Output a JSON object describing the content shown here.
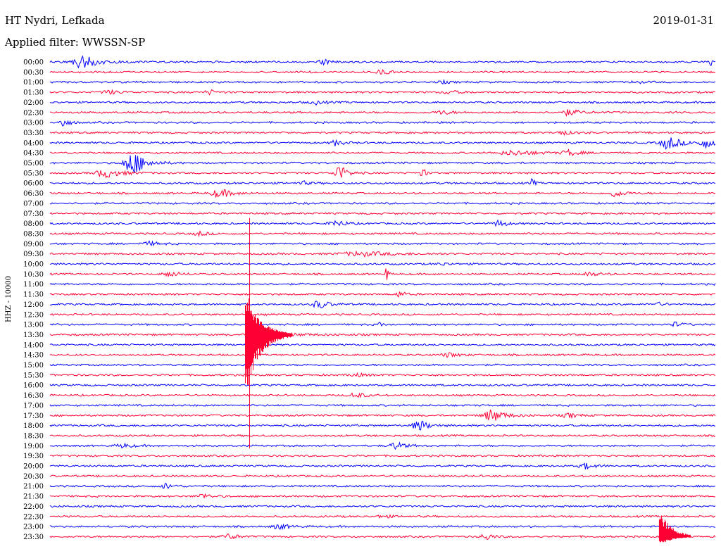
{
  "header": {
    "station": "HT Nydri, Lefkada",
    "date": "2019-01-31",
    "filter": "Applied filter: WWSSN-SP"
  },
  "chart_data": {
    "type": "line",
    "subtype": "helicorder",
    "ylabel": "HHZ - 10000",
    "colors": {
      "even": "#0000ff",
      "odd": "#ff0033"
    },
    "tick_labels": [
      "00:00",
      "00:30",
      "01:00",
      "01:30",
      "02:00",
      "02:30",
      "03:00",
      "03:30",
      "04:00",
      "04:30",
      "05:00",
      "05:30",
      "06:00",
      "06:30",
      "07:00",
      "07:30",
      "08:00",
      "08:30",
      "09:00",
      "09:30",
      "10:00",
      "10:30",
      "11:00",
      "11:30",
      "12:00",
      "12:30",
      "13:00",
      "13:30",
      "14:00",
      "14:30",
      "15:00",
      "15:30",
      "16:00",
      "16:30",
      "17:00",
      "17:30",
      "18:00",
      "18:30",
      "19:00",
      "19:30",
      "20:00",
      "20:30",
      "21:00",
      "21:30",
      "22:00",
      "22:30",
      "23:00",
      "23:30"
    ],
    "events": [
      {
        "row": 0,
        "pos": 0.05,
        "amp": 9,
        "width": 0.025
      },
      {
        "row": 0,
        "pos": 0.41,
        "amp": 4,
        "width": 0.012
      },
      {
        "row": 0,
        "pos": 0.993,
        "amp": 6,
        "width": 0.004
      },
      {
        "row": 1,
        "pos": 0.5,
        "amp": 2.5,
        "width": 0.015
      },
      {
        "row": 2,
        "pos": 0.59,
        "amp": 2,
        "width": 0.01
      },
      {
        "row": 2,
        "pos": 0.88,
        "amp": 2,
        "width": 0.01
      },
      {
        "row": 3,
        "pos": 0.09,
        "amp": 2.5,
        "width": 0.02
      },
      {
        "row": 3,
        "pos": 0.24,
        "amp": 3,
        "width": 0.012
      },
      {
        "row": 3,
        "pos": 0.6,
        "amp": 2.5,
        "width": 0.015
      },
      {
        "row": 4,
        "pos": 0.4,
        "amp": 2.5,
        "width": 0.015
      },
      {
        "row": 5,
        "pos": 0.59,
        "amp": 3,
        "width": 0.015
      },
      {
        "row": 5,
        "pos": 0.78,
        "amp": 4,
        "width": 0.02
      },
      {
        "row": 6,
        "pos": 0.02,
        "amp": 6,
        "width": 0.01
      },
      {
        "row": 7,
        "pos": 0.77,
        "amp": 3,
        "width": 0.015
      },
      {
        "row": 8,
        "pos": 0.43,
        "amp": 4,
        "width": 0.012
      },
      {
        "row": 8,
        "pos": 0.93,
        "amp": 9,
        "width": 0.02
      },
      {
        "row": 8,
        "pos": 0.985,
        "amp": 7,
        "width": 0.015
      },
      {
        "row": 9,
        "pos": 0.7,
        "amp": 3,
        "width": 0.04
      },
      {
        "row": 9,
        "pos": 0.78,
        "amp": 4,
        "width": 0.015
      },
      {
        "row": 10,
        "pos": 0.125,
        "amp": 18,
        "width": 0.02
      },
      {
        "row": 11,
        "pos": 0.085,
        "amp": 6,
        "width": 0.025
      },
      {
        "row": 11,
        "pos": 0.435,
        "amp": 12,
        "width": 0.012
      },
      {
        "row": 11,
        "pos": 0.56,
        "amp": 12,
        "width": 0.004
      },
      {
        "row": 12,
        "pos": 0.38,
        "amp": 2.5,
        "width": 0.012
      },
      {
        "row": 12,
        "pos": 0.725,
        "amp": 7,
        "width": 0.004
      },
      {
        "row": 13,
        "pos": 0.255,
        "amp": 6,
        "width": 0.02
      },
      {
        "row": 13,
        "pos": 0.85,
        "amp": 5,
        "width": 0.015
      },
      {
        "row": 16,
        "pos": 0.43,
        "amp": 5,
        "width": 0.015
      },
      {
        "row": 16,
        "pos": 0.675,
        "amp": 5,
        "width": 0.012
      },
      {
        "row": 17,
        "pos": 0.225,
        "amp": 3,
        "width": 0.012
      },
      {
        "row": 18,
        "pos": 0.15,
        "amp": 2.5,
        "width": 0.02
      },
      {
        "row": 19,
        "pos": 0.47,
        "amp": 3,
        "width": 0.05
      },
      {
        "row": 20,
        "pos": 0.59,
        "amp": 2,
        "width": 0.01
      },
      {
        "row": 21,
        "pos": 0.18,
        "amp": 4,
        "width": 0.015
      },
      {
        "row": 21,
        "pos": 0.505,
        "amp": 24,
        "width": 0.002
      },
      {
        "row": 21,
        "pos": 0.81,
        "amp": 3,
        "width": 0.015
      },
      {
        "row": 23,
        "pos": 0.525,
        "amp": 4,
        "width": 0.01
      },
      {
        "row": 24,
        "pos": 0.405,
        "amp": 6,
        "width": 0.015
      },
      {
        "row": 24,
        "pos": 0.912,
        "amp": 2.5,
        "width": 0.012
      },
      {
        "row": 26,
        "pos": 0.495,
        "amp": 5,
        "width": 0.003
      },
      {
        "row": 26,
        "pos": 0.94,
        "amp": 3,
        "width": 0.012
      },
      {
        "row": 27,
        "pos": 0.33,
        "amp": 3,
        "width": 0.05
      },
      {
        "row": 29,
        "pos": 0.6,
        "amp": 3,
        "width": 0.015
      },
      {
        "row": 31,
        "pos": 0.46,
        "amp": 2.5,
        "width": 0.015
      },
      {
        "row": 33,
        "pos": 0.46,
        "amp": 4,
        "width": 0.015
      },
      {
        "row": 35,
        "pos": 0.665,
        "amp": 9,
        "width": 0.02
      },
      {
        "row": 35,
        "pos": 0.78,
        "amp": 3,
        "width": 0.015
      },
      {
        "row": 36,
        "pos": 0.555,
        "amp": 8,
        "width": 0.015
      },
      {
        "row": 38,
        "pos": 0.11,
        "amp": 3,
        "width": 0.015
      },
      {
        "row": 38,
        "pos": 0.52,
        "amp": 5,
        "width": 0.015
      },
      {
        "row": 40,
        "pos": 0.805,
        "amp": 4,
        "width": 0.015
      },
      {
        "row": 42,
        "pos": 0.175,
        "amp": 4,
        "width": 0.012
      },
      {
        "row": 43,
        "pos": 0.23,
        "amp": 4,
        "width": 0.012
      },
      {
        "row": 45,
        "pos": 0.5,
        "amp": 2.5,
        "width": 0.012
      },
      {
        "row": 46,
        "pos": 0.345,
        "amp": 4,
        "width": 0.015
      },
      {
        "row": 47,
        "pos": 0.27,
        "amp": 4,
        "width": 0.015
      },
      {
        "row": 47,
        "pos": 0.655,
        "amp": 5,
        "width": 0.012
      }
    ],
    "major_event": {
      "row": 27,
      "pos": 0.3,
      "spike_top_row": 16,
      "spike_bottom_row": 38,
      "body_top_row": 23,
      "body_bottom_row": 33
    },
    "late_event": {
      "row": 47,
      "pos": 0.92,
      "body_top_row": 45
    }
  }
}
